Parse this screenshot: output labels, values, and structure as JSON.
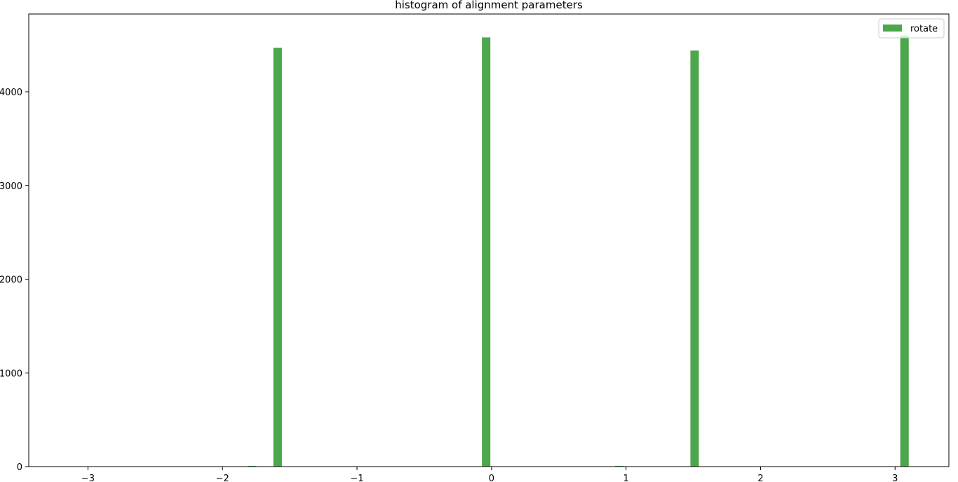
{
  "chart_data": {
    "type": "bar",
    "title": "histogram of alignment parameters",
    "xlabel": "",
    "ylabel": "",
    "xlim": [
      -3.44,
      3.4
    ],
    "ylim": [
      0,
      4830
    ],
    "grid": false,
    "legend_position": "top-right",
    "x_ticks": [
      -3,
      -2,
      -1,
      0,
      1,
      2,
      3
    ],
    "x_tick_labels": [
      "−3",
      "−2",
      "−1",
      "0",
      "1",
      "2",
      "3"
    ],
    "y_ticks": [
      0,
      1000,
      2000,
      3000,
      4000
    ],
    "y_tick_labels": [
      "0",
      "1000",
      "2000",
      "3000",
      "4000"
    ],
    "bin_width": 0.063,
    "series": [
      {
        "name": "rotate",
        "color": "#4ca64c",
        "bins": [
          {
            "x": -1.78,
            "count": 8
          },
          {
            "x": -1.59,
            "count": 4470
          },
          {
            "x": -0.04,
            "count": 4580
          },
          {
            "x": 0.95,
            "count": 8
          },
          {
            "x": 1.51,
            "count": 4440
          },
          {
            "x": 3.07,
            "count": 4600
          }
        ]
      }
    ]
  }
}
